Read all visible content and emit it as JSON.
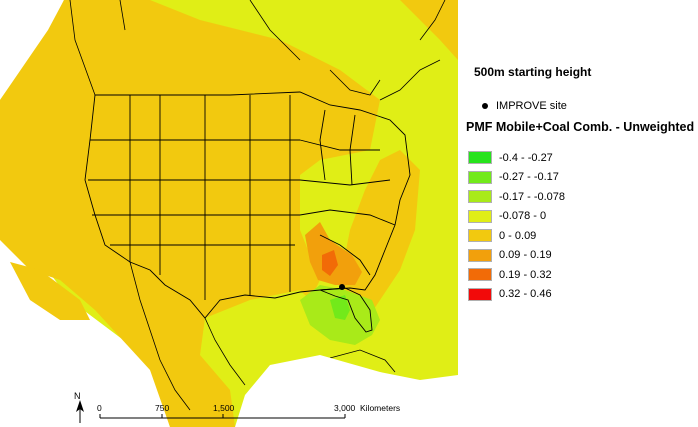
{
  "subtitle": "500m starting height",
  "site_legend": "IMPROVE site",
  "legend_title": "PMF Mobile+Coal Comb. - Unweighted",
  "classes": [
    {
      "label": "-0.4 - -0.27",
      "color": "#27e31c"
    },
    {
      "label": "-0.27 - -0.17",
      "color": "#72ea1a"
    },
    {
      "label": "-0.17 - -0.078",
      "color": "#a9ea19"
    },
    {
      "label": "-0.078 - 0",
      "color": "#e0ee16"
    },
    {
      "label": "0 - 0.09",
      "color": "#f2c90f"
    },
    {
      "label": "0.09 - 0.19",
      "color": "#f2a00c"
    },
    {
      "label": "0.19 - 0.32",
      "color": "#f26b07"
    },
    {
      "label": "0.32 - 0.46",
      "color": "#f20a0a"
    }
  ],
  "scale_bar": {
    "ticks": [
      "0",
      "750",
      "1,500",
      "3,000"
    ],
    "unit": "Kilometers"
  },
  "north_label": "N"
}
